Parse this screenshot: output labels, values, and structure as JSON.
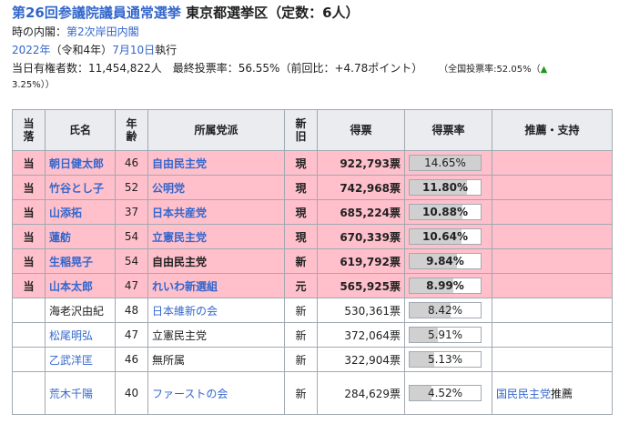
{
  "header": {
    "title_link": "第26回参議院議員通常選挙",
    "title_rest": " 東京都選挙区（定数：6人）",
    "cabinet_label": "時の内閣：",
    "cabinet_link": "第2次岸田内閣",
    "date_year": "2022年",
    "date_era": "（令和4年）",
    "date_day": "7月10日",
    "date_suffix": "執行",
    "stats": "当日有権者数：11,454,822人　最終投票率：56.55%（前回比：+4.78ポイント）",
    "national_rate_prefix": "（全国投票率:52.05%（",
    "national_rate_arrow": "▲",
    "national_rate_suffix": "3.25%））"
  },
  "table": {
    "headers": {
      "elected": "当落",
      "name": "氏名",
      "age": "年齢",
      "party": "所属党派",
      "status": "新旧",
      "votes": "得票",
      "rate": "得票率",
      "support": "推薦・支持"
    },
    "rows": [
      {
        "elected": "当",
        "name": "朝日健太郎",
        "age": "46",
        "party": "自由民主党",
        "status": "現",
        "votes": "922,793票",
        "rate": "14.65%",
        "rate_value": 14.65,
        "support": "",
        "support_suffix": ""
      },
      {
        "elected": "当",
        "name": "竹谷とし子",
        "age": "52",
        "party": "公明党",
        "status": "現",
        "votes": "742,968票",
        "rate": "11.80%",
        "rate_value": 11.8,
        "support": "",
        "support_suffix": ""
      },
      {
        "elected": "当",
        "name": "山添拓",
        "age": "37",
        "party": "日本共産党",
        "status": "現",
        "votes": "685,224票",
        "rate": "10.88%",
        "rate_value": 10.88,
        "support": "",
        "support_suffix": ""
      },
      {
        "elected": "当",
        "name": "蓮舫",
        "age": "54",
        "party": "立憲民主党",
        "status": "現",
        "votes": "670,339票",
        "rate": "10.64%",
        "rate_value": 10.64,
        "support": "",
        "support_suffix": ""
      },
      {
        "elected": "当",
        "name": "生稲晃子",
        "age": "54",
        "party": "自由民主党",
        "status": "新",
        "votes": "619,792票",
        "rate": "9.84%",
        "rate_value": 9.84,
        "support": "",
        "support_suffix": ""
      },
      {
        "elected": "当",
        "name": "山本太郎",
        "age": "47",
        "party": "れいわ新選組",
        "status": "元",
        "votes": "565,925票",
        "rate": "8.99%",
        "rate_value": 8.99,
        "support": "",
        "support_suffix": ""
      },
      {
        "elected": "",
        "name": "海老沢由紀",
        "age": "48",
        "party": "日本維新の会",
        "status": "新",
        "votes": "530,361票",
        "rate": "8.42%",
        "rate_value": 8.42,
        "support": "",
        "support_suffix": ""
      },
      {
        "elected": "",
        "name": "松尾明弘",
        "age": "47",
        "party": "立憲民主党",
        "status": "新",
        "votes": "372,064票",
        "rate": "5.91%",
        "rate_value": 5.91,
        "support": "",
        "support_suffix": ""
      },
      {
        "elected": "",
        "name": "乙武洋匡",
        "age": "46",
        "party": "無所属",
        "status": "新",
        "votes": "322,904票",
        "rate": "5.13%",
        "rate_value": 5.13,
        "support": "",
        "support_suffix": ""
      },
      {
        "elected": "",
        "name": "荒木千陽",
        "age": "40",
        "party": "ファーストの会",
        "status": "新",
        "votes": "284,629票",
        "rate": "4.52%",
        "rate_value": 4.52,
        "support": "国民民主党",
        "support_suffix": "推薦"
      }
    ]
  }
}
